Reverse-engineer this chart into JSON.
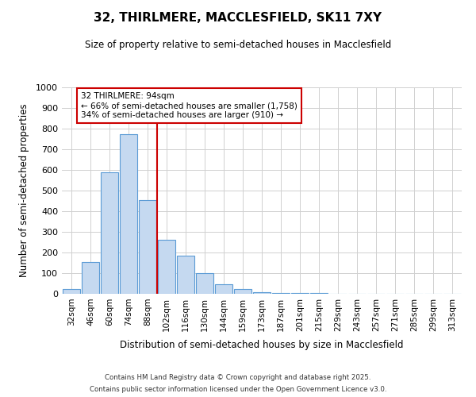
{
  "title": "32, THIRLMERE, MACCLESFIELD, SK11 7XY",
  "subtitle": "Size of property relative to semi-detached houses in Macclesfield",
  "xlabel": "Distribution of semi-detached houses by size in Macclesfield",
  "ylabel": "Number of semi-detached properties",
  "annotation_text": "32 THIRLMERE: 94sqm\n← 66% of semi-detached houses are smaller (1,758)\n34% of semi-detached houses are larger (910) →",
  "categories": [
    "32sqm",
    "46sqm",
    "60sqm",
    "74sqm",
    "88sqm",
    "102sqm",
    "116sqm",
    "130sqm",
    "144sqm",
    "159sqm",
    "173sqm",
    "187sqm",
    "201sqm",
    "215sqm",
    "229sqm",
    "243sqm",
    "257sqm",
    "271sqm",
    "285sqm",
    "299sqm",
    "313sqm"
  ],
  "values": [
    25,
    155,
    590,
    775,
    455,
    260,
    185,
    100,
    45,
    25,
    8,
    4,
    2,
    2,
    1,
    1,
    0,
    0,
    0,
    0,
    0
  ],
  "bar_color": "#c5d9f0",
  "bar_edge_color": "#5b9bd5",
  "vline_color": "#cc0000",
  "vline_x": 4.5,
  "annotation_box_color": "#cc0000",
  "background_color": "#ffffff",
  "grid_color": "#d0d0d0",
  "ylim": [
    0,
    1000
  ],
  "yticks": [
    0,
    100,
    200,
    300,
    400,
    500,
    600,
    700,
    800,
    900,
    1000
  ],
  "footer1": "Contains HM Land Registry data © Crown copyright and database right 2025.",
  "footer2": "Contains public sector information licensed under the Open Government Licence v3.0."
}
